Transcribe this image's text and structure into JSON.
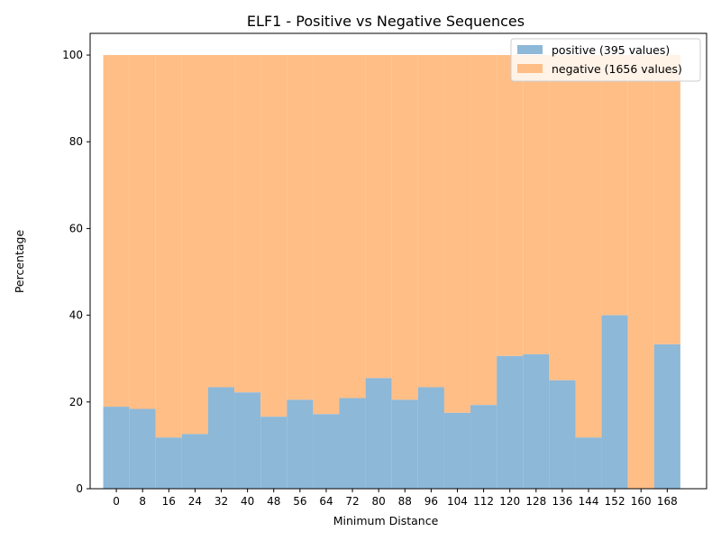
{
  "chart_data": {
    "type": "bar",
    "stacked": true,
    "title": "ELF1 - Positive vs Negative Sequences",
    "xlabel": "Minimum Distance",
    "ylabel": "Percentage",
    "x": [
      0,
      8,
      16,
      24,
      32,
      40,
      48,
      56,
      64,
      72,
      80,
      88,
      96,
      104,
      112,
      120,
      128,
      136,
      144,
      152,
      160,
      168
    ],
    "xticks": [
      "0",
      "8",
      "16",
      "24",
      "32",
      "40",
      "48",
      "56",
      "64",
      "72",
      "80",
      "88",
      "96",
      "104",
      "112",
      "120",
      "128",
      "136",
      "144",
      "152",
      "160",
      "168"
    ],
    "xlim": [
      -8,
      180
    ],
    "ylim": [
      0,
      105
    ],
    "yticks": [
      0,
      20,
      40,
      60,
      80,
      100
    ],
    "bin_width": 8,
    "series": [
      {
        "name": "positive (395 values)",
        "color": "#8db8d8",
        "values": [
          18.9,
          18.4,
          11.8,
          12.6,
          23.4,
          22.2,
          16.6,
          20.5,
          17.2,
          20.9,
          25.5,
          20.5,
          23.4,
          17.5,
          19.3,
          30.6,
          31.0,
          25.0,
          11.8,
          40.0,
          0.0,
          33.3
        ]
      },
      {
        "name": "negative (1656 values)",
        "color": "#ffbe86",
        "values": [
          81.1,
          81.6,
          88.2,
          87.4,
          76.6,
          77.8,
          83.4,
          79.5,
          82.8,
          79.1,
          74.5,
          79.5,
          76.6,
          82.5,
          80.7,
          69.4,
          69.0,
          75.0,
          88.2,
          60.0,
          100.0,
          66.7
        ]
      }
    ],
    "legend": "top-right",
    "grid": false
  }
}
